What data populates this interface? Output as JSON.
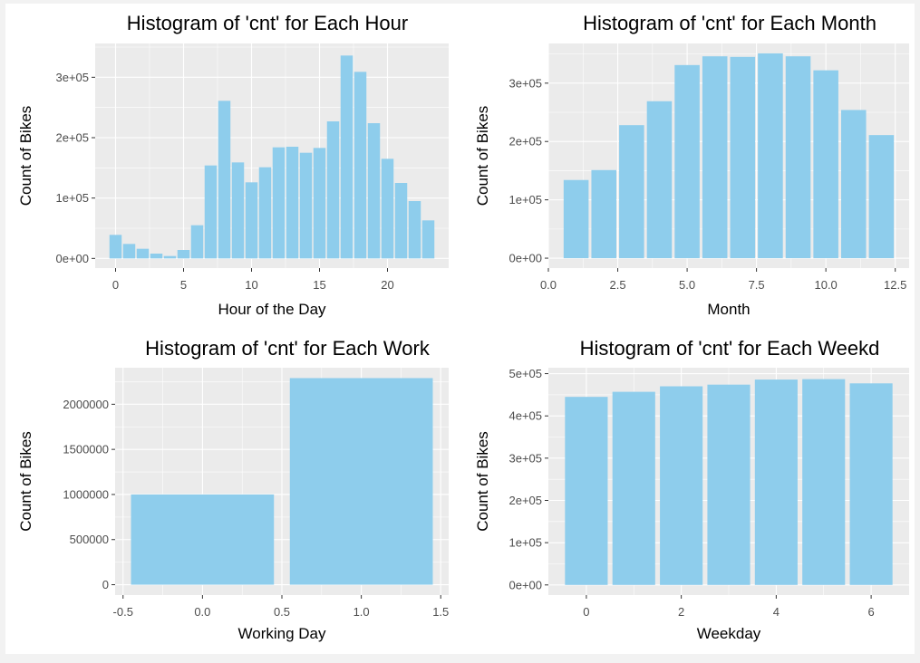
{
  "colors": {
    "bar": "#8ecdec",
    "panel_background": "#ebebeb",
    "grid": "#ffffff"
  },
  "chart_data": [
    {
      "type": "bar",
      "title": "Histogram of 'cnt' for Each Hour",
      "xlabel": "Hour of the Day",
      "ylabel": "Count of Bikes",
      "x": [
        0,
        1,
        2,
        3,
        4,
        5,
        6,
        7,
        8,
        9,
        10,
        11,
        12,
        13,
        14,
        15,
        16,
        17,
        18,
        19,
        20,
        21,
        22,
        23
      ],
      "values": [
        39000,
        24000,
        16000,
        8000,
        4000,
        14000,
        55000,
        154000,
        261000,
        159000,
        126000,
        151000,
        184000,
        185000,
        175000,
        183000,
        227000,
        336000,
        309000,
        224000,
        165000,
        125000,
        95000,
        63000
      ],
      "xlim": [
        -1.5,
        24.5
      ],
      "ylim": [
        -16000,
        356000
      ],
      "xticks": [
        0,
        5,
        10,
        15,
        20
      ],
      "xtick_labels": [
        "0",
        "5",
        "10",
        "15",
        "20"
      ],
      "yticks": [
        0,
        100000,
        200000,
        300000
      ],
      "ytick_labels": [
        "0e+00",
        "1e+05",
        "2e+05",
        "3e+05"
      ],
      "grid": true
    },
    {
      "type": "bar",
      "title": "Histogram of 'cnt' for Each Month",
      "xlabel": "Month",
      "ylabel": "Count of Bikes",
      "x": [
        1,
        2,
        3,
        4,
        5,
        6,
        7,
        8,
        9,
        10,
        11,
        12
      ],
      "values": [
        134000,
        151000,
        228000,
        269000,
        331000,
        346000,
        345000,
        351000,
        346000,
        322000,
        254000,
        211000
      ],
      "xlim": [
        0,
        13
      ],
      "ylim": [
        -17000,
        368000
      ],
      "xticks": [
        0,
        2.5,
        5,
        7.5,
        10,
        12.5
      ],
      "xtick_labels": [
        "0.0",
        "2.5",
        "5.0",
        "7.5",
        "10.0",
        "12.5"
      ],
      "yticks": [
        0,
        100000,
        200000,
        300000
      ],
      "ytick_labels": [
        "0e+00",
        "1e+05",
        "2e+05",
        "3e+05"
      ],
      "grid": true
    },
    {
      "type": "bar",
      "title": "Histogram of 'cnt' for Each Work",
      "xlabel": "Working Day",
      "ylabel": "Count of Bikes",
      "x": [
        0,
        1
      ],
      "values": [
        1000000,
        2290000
      ],
      "xlim": [
        -0.55,
        1.55
      ],
      "ylim": [
        -115000,
        2405000
      ],
      "xticks": [
        -0.5,
        0,
        0.5,
        1,
        1.5
      ],
      "xtick_labels": [
        "-0.5",
        "0.0",
        "0.5",
        "1.0",
        "1.5"
      ],
      "yticks": [
        0,
        500000,
        1000000,
        1500000,
        2000000
      ],
      "ytick_labels": [
        "0",
        "500000",
        "1000000",
        "1500000",
        "2000000"
      ],
      "grid": true
    },
    {
      "type": "bar",
      "title": "Histogram of 'cnt' for Each Weekd",
      "xlabel": "Weekday",
      "ylabel": "Count of Bikes",
      "x": [
        0,
        1,
        2,
        3,
        4,
        5,
        6
      ],
      "values": [
        445000,
        457000,
        470000,
        474000,
        486000,
        487000,
        477000
      ],
      "xlim": [
        -0.8,
        6.8
      ],
      "ylim": [
        -24000,
        514000
      ],
      "xticks": [
        0,
        2,
        4,
        6
      ],
      "xtick_labels": [
        "0",
        "2",
        "4",
        "6"
      ],
      "yticks": [
        0,
        100000,
        200000,
        300000,
        400000,
        500000
      ],
      "ytick_labels": [
        "0e+00",
        "1e+05",
        "2e+05",
        "3e+05",
        "4e+05",
        "5e+05"
      ],
      "grid": true
    }
  ]
}
